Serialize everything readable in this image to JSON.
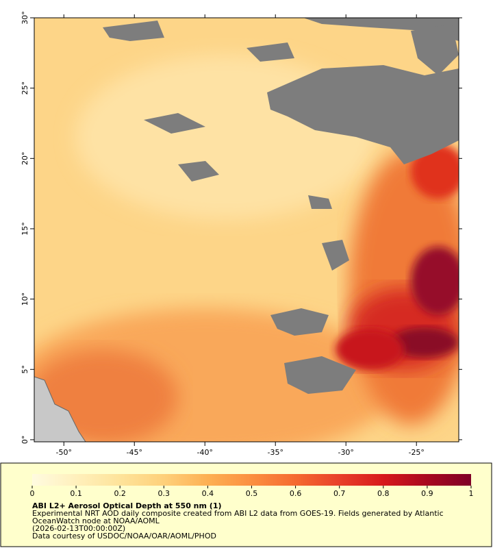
{
  "map": {
    "xlim": [
      -52.1,
      -22
    ],
    "ylim": [
      -0.15,
      30
    ],
    "xticks": [
      {
        "value": -50,
        "label": "-50°"
      },
      {
        "value": -45,
        "label": "-45°"
      },
      {
        "value": -40,
        "label": "-40°"
      },
      {
        "value": -35,
        "label": "-35°"
      },
      {
        "value": -30,
        "label": "-30°"
      },
      {
        "value": -25,
        "label": "-25°"
      }
    ],
    "yticks": [
      {
        "value": 0,
        "label": "0°"
      },
      {
        "value": 5,
        "label": "5°"
      },
      {
        "value": 10,
        "label": "10°"
      },
      {
        "value": 15,
        "label": "15°"
      },
      {
        "value": 20,
        "label": "20°"
      },
      {
        "value": 25,
        "label": "25°"
      },
      {
        "value": 30,
        "label": "30°"
      }
    ]
  },
  "colorbar": {
    "lim": [
      0,
      1
    ],
    "ticks": [
      0,
      0.1,
      0.2,
      0.3,
      0.4,
      0.5,
      0.6,
      0.7,
      0.8,
      0.9,
      1
    ],
    "colors": [
      "#fffbe0",
      "#fff0bc",
      "#fee39a",
      "#fed07a",
      "#fdb053",
      "#fb8f40",
      "#f56a30",
      "#e8402a",
      "#d7191c",
      "#a8081f",
      "#7f0026"
    ]
  },
  "legend": {
    "title": "ABI L2+ Aerosol Optical Depth at 550 nm (1)",
    "lines": [
      "Experimental NRT AOD daily composite created from ABI L2 data from GOES-19. Fields generated by Atlantic",
      "OceanWatch node at NOAA/AOML",
      "(2026-02-13T00:00:00Z)",
      "Data courtesy of USDOC/NOAA/OAR/AOML/PHOD"
    ]
  }
}
